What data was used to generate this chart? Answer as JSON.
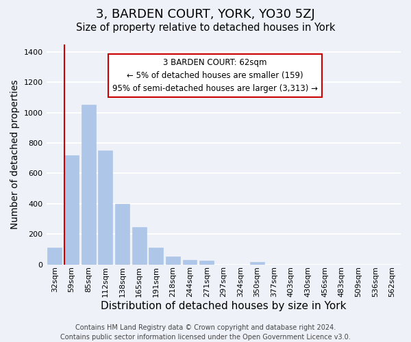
{
  "title": "3, BARDEN COURT, YORK, YO30 5ZJ",
  "subtitle": "Size of property relative to detached houses in York",
  "xlabel": "Distribution of detached houses by size in York",
  "ylabel": "Number of detached properties",
  "bar_values": [
    110,
    720,
    1055,
    750,
    400,
    245,
    110,
    50,
    30,
    25,
    0,
    0,
    15,
    0,
    0,
    0,
    0,
    0,
    0,
    0,
    0
  ],
  "bar_labels": [
    "32sqm",
    "59sqm",
    "85sqm",
    "112sqm",
    "138sqm",
    "165sqm",
    "191sqm",
    "218sqm",
    "244sqm",
    "271sqm",
    "297sqm",
    "324sqm",
    "350sqm",
    "377sqm",
    "403sqm",
    "430sqm",
    "456sqm",
    "483sqm",
    "509sqm",
    "536sqm",
    "562sqm"
  ],
  "bar_color": "#aec6e8",
  "bar_edge_color": "#aec6e8",
  "marker_bar_index": 1,
  "marker_color": "#cc0000",
  "ylim": [
    0,
    1450
  ],
  "yticks": [
    0,
    200,
    400,
    600,
    800,
    1000,
    1200,
    1400
  ],
  "annotation_title": "3 BARDEN COURT: 62sqm",
  "annotation_line1": "← 5% of detached houses are smaller (159)",
  "annotation_line2": "95% of semi-detached houses are larger (3,313) →",
  "footer_line1": "Contains HM Land Registry data © Crown copyright and database right 2024.",
  "footer_line2": "Contains public sector information licensed under the Open Government Licence v3.0.",
  "background_color": "#eef2f8",
  "grid_color": "#ffffff",
  "title_fontsize": 13,
  "subtitle_fontsize": 10.5,
  "axis_label_fontsize": 10,
  "tick_fontsize": 8,
  "footer_fontsize": 7
}
